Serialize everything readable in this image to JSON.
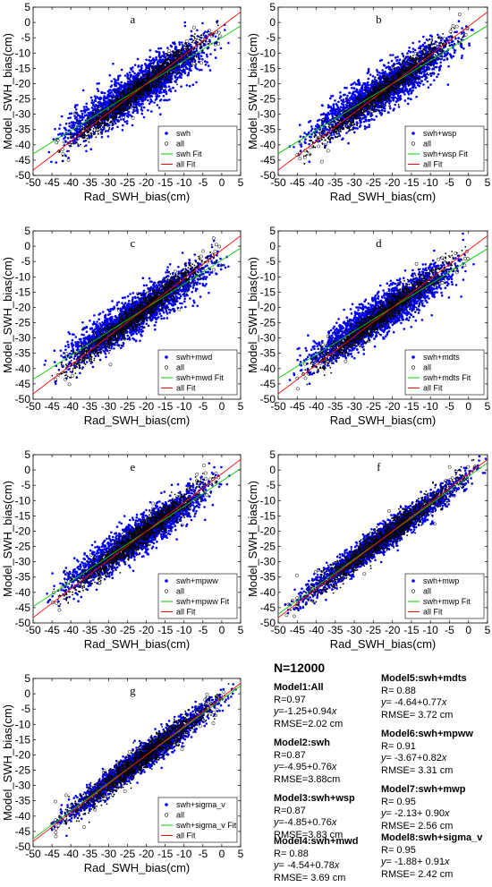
{
  "figure": {
    "xlabel": "Rad_SWH_bias(cm)",
    "ylabel": "Model_SWH_bias(cm)",
    "xlim": [
      -50,
      5
    ],
    "ylim": [
      -50,
      5
    ],
    "xticks": [
      "-50",
      "-45",
      "-40",
      "-35",
      "-30",
      "-25",
      "-20",
      "-15",
      "-10",
      "-5",
      "0",
      "5"
    ],
    "yticks": [
      "5",
      "0",
      "-5",
      "-10",
      "-15",
      "-20",
      "-25",
      "-30",
      "-35",
      "-40",
      "-45",
      "-50"
    ],
    "colors": {
      "model_points": "#0000ff",
      "all_points": "#000000",
      "model_fit": "#00cc00",
      "all_fit": "#ff0000"
    }
  },
  "chart_data": [
    {
      "type": "scatter",
      "panel": "a",
      "legend": [
        "swh",
        "all",
        "swh Fit",
        "all Fit"
      ],
      "legend_position": "bottom-right",
      "fit_model": {
        "intercept": -4.95,
        "slope": 0.76
      },
      "fit_all": {
        "intercept": -1.25,
        "slope": 0.94
      },
      "x_range": [
        -45,
        0
      ],
      "spread": 6.5
    },
    {
      "type": "scatter",
      "panel": "b",
      "legend": [
        "swh+wsp",
        "all",
        "swh+wsp Fit",
        "all Fit"
      ],
      "legend_position": "bottom-right",
      "fit_model": {
        "intercept": -4.85,
        "slope": 0.76
      },
      "fit_all": {
        "intercept": -1.25,
        "slope": 0.94
      },
      "x_range": [
        -45,
        0
      ],
      "spread": 6.0
    },
    {
      "type": "scatter",
      "panel": "c",
      "legend": [
        "swh+mwd",
        "all",
        "swh+mwd Fit",
        "all Fit"
      ],
      "legend_position": "bottom-right",
      "fit_model": {
        "intercept": -4.54,
        "slope": 0.78
      },
      "fit_all": {
        "intercept": -1.25,
        "slope": 0.94
      },
      "x_range": [
        -45,
        0
      ],
      "spread": 5.8
    },
    {
      "type": "scatter",
      "panel": "d",
      "legend": [
        "swh+mdts",
        "all",
        "swh+mdts Fit",
        "all Fit"
      ],
      "legend_position": "bottom-right",
      "fit_model": {
        "intercept": -4.64,
        "slope": 0.77
      },
      "fit_all": {
        "intercept": -1.25,
        "slope": 0.94
      },
      "x_range": [
        -45,
        0
      ],
      "spread": 5.8
    },
    {
      "type": "scatter",
      "panel": "e",
      "legend": [
        "swh+mpww",
        "all",
        "swh+mpww Fit",
        "all Fit"
      ],
      "legend_position": "bottom-right",
      "fit_model": {
        "intercept": -3.67,
        "slope": 0.82
      },
      "fit_all": {
        "intercept": -1.25,
        "slope": 0.94
      },
      "x_range": [
        -45,
        0
      ],
      "spread": 5.2
    },
    {
      "type": "scatter",
      "panel": "f",
      "legend": [
        "swh+mwp",
        "all",
        "swh+mwp Fit",
        "all Fit"
      ],
      "legend_position": "bottom-right",
      "fit_model": {
        "intercept": -2.13,
        "slope": 0.9
      },
      "fit_all": {
        "intercept": -1.25,
        "slope": 0.94
      },
      "x_range": [
        -48,
        3
      ],
      "spread": 3.8
    },
    {
      "type": "scatter",
      "panel": "g",
      "legend": [
        "swh+sigma_v",
        "all",
        "swh+sigma_v Fit",
        "all Fit"
      ],
      "legend_position": "bottom-right",
      "fit_model": {
        "intercept": -1.88,
        "slope": 0.91
      },
      "fit_all": {
        "intercept": -1.25,
        "slope": 0.94
      },
      "x_range": [
        -45,
        3
      ],
      "spread": 3.6
    }
  ],
  "stats": {
    "n_label": "N=12000",
    "models": [
      {
        "name": "Model1:All",
        "r": "R=0.97",
        "eq_prefix": "y",
        "eq_rest": "=-1.25+0.94",
        "eq_var": "x",
        "rmse": "RMSE=2.02 cm"
      },
      {
        "name": "Model2:swh",
        "r": "R=0.87",
        "eq_prefix": "y",
        "eq_rest": "=-4.95+0.76",
        "eq_var": "x",
        "rmse": "RMSE=3.88cm"
      },
      {
        "name": "Model3:swh+wsp",
        "r": "R=0.87",
        "eq_prefix": "y",
        "eq_rest": "=-4.85+0.76",
        "eq_var": "x",
        "rmse": "RMSE=3.83 cm"
      },
      {
        "name": "Model4:swh+mwd",
        "r": "R= 0.88",
        "eq_prefix": "y",
        "eq_rest": "= -4.54+0.78",
        "eq_var": "x",
        "rmse": "RMSE= 3.69 cm"
      },
      {
        "name": "Model5:swh+mdts",
        "r": "R= 0.88",
        "eq_prefix": "y",
        "eq_rest": "= -4.64+0.77",
        "eq_var": "x",
        "rmse": "RMSE= 3.72 cm"
      },
      {
        "name": "Model6:swh+mpww",
        "r": "R= 0.91",
        "eq_prefix": "y",
        "eq_rest": "= -3.67+0.82",
        "eq_var": "x",
        "rmse": "RMSE= 3.31 cm"
      },
      {
        "name": "Model7:swh+mwp",
        "r": "R= 0.95",
        "eq_prefix": "y",
        "eq_rest": "= -2.13+ 0.90",
        "eq_var": "x",
        "rmse": "RMSE= 2.56 cm"
      },
      {
        "name": "Model8:swh+sigma_v",
        "r": "R= 0.95",
        "eq_prefix": "y",
        "eq_rest": "= -1.88+ 0.91",
        "eq_var": "x",
        "rmse": "RMSE= 2.42 cm"
      }
    ]
  }
}
